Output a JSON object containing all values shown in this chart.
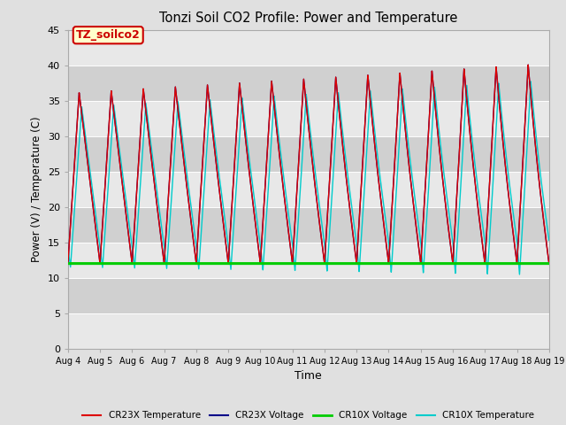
{
  "title": "Tonzi Soil CO2 Profile: Power and Temperature",
  "xlabel": "Time",
  "ylabel": "Power (V) / Temperature (C)",
  "ylim": [
    0,
    45
  ],
  "annotation_text": "TZ_soilco2",
  "x_tick_labels": [
    "Aug 4",
    "Aug 5",
    "Aug 6",
    "Aug 7",
    "Aug 8",
    "Aug 9",
    "Aug 10",
    "Aug 11",
    "Aug 12",
    "Aug 13",
    "Aug 14",
    "Aug 15",
    "Aug 16",
    "Aug 17",
    "Aug 18",
    "Aug 19"
  ],
  "cr23x_temp_color": "#dd0000",
  "cr23x_volt_color": "#000088",
  "cr10x_volt_color": "#00cc00",
  "cr10x_temp_color": "#00cccc",
  "fig_bg_color": "#e0e0e0",
  "band_light": "#e8e8e8",
  "band_dark": "#d0d0d0",
  "legend_labels": [
    "CR23X Temperature",
    "CR23X Voltage",
    "CR10X Voltage",
    "CR10X Temperature"
  ],
  "annotation_bg": "#ffffcc",
  "annotation_edge": "#cc0000",
  "annotation_text_color": "#cc0000"
}
